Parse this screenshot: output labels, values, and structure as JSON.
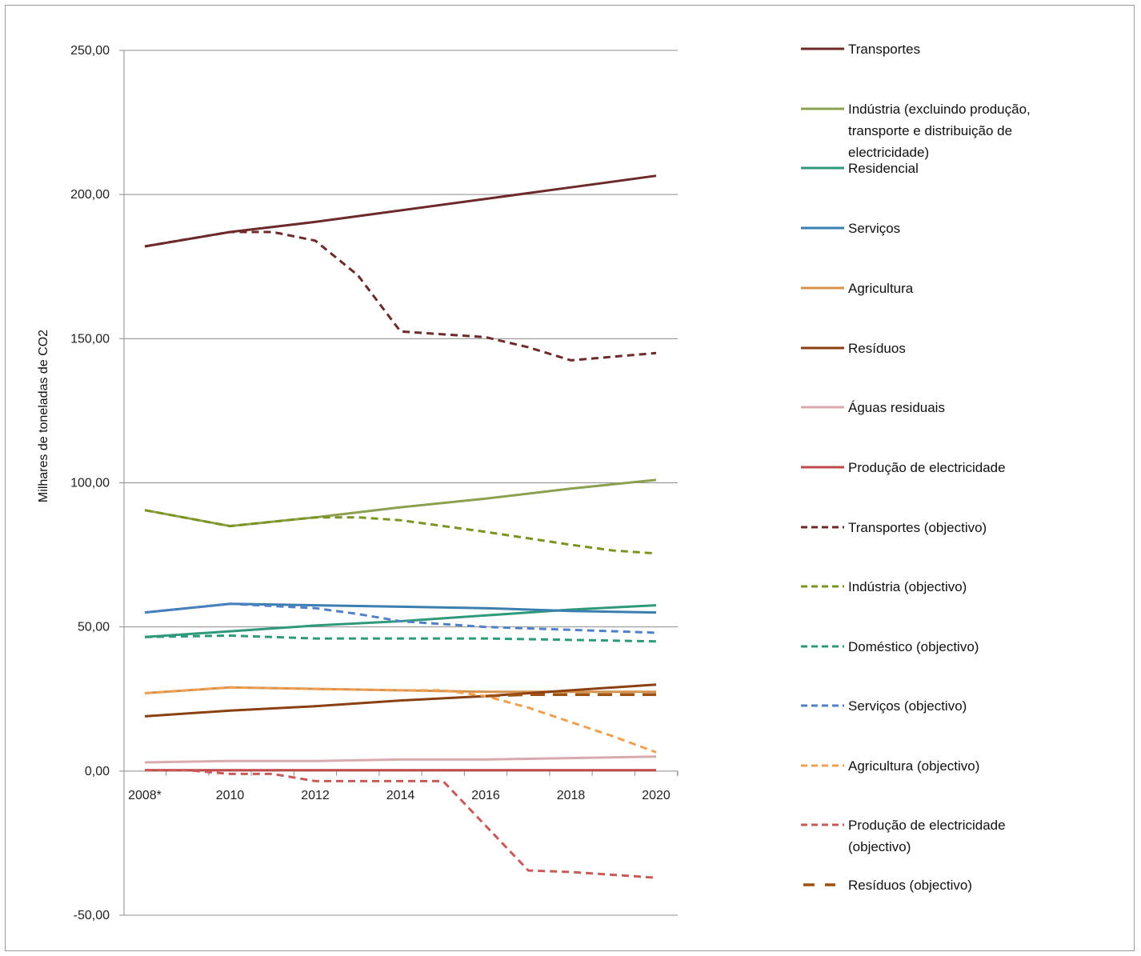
{
  "chart_data": {
    "type": "line",
    "title": "",
    "ylabel": "Milhares de toneladas de CO2",
    "xlabel": "",
    "ylim": [
      -50,
      250
    ],
    "yticks": [
      250,
      200,
      150,
      100,
      50,
      0,
      -50
    ],
    "ytick_labels": [
      "250,00",
      "200,00",
      "150,00",
      "100,00",
      "50,00",
      "0,00",
      "-50,00"
    ],
    "xlim": [
      2008,
      2020
    ],
    "xticks": [
      2008,
      2010,
      2012,
      2014,
      2016,
      2018,
      2020
    ],
    "xtick_labels": [
      "2008*",
      "2010",
      "2012",
      "2014",
      "2016",
      "2018",
      "2020"
    ],
    "grid": "horizontal",
    "legend_position": "right",
    "series": [
      {
        "name": "Transportes",
        "color": "#6e2a2a",
        "dash": "solid",
        "x": [
          2008,
          2010,
          2012,
          2014,
          2016,
          2018,
          2020
        ],
        "y": [
          182,
          187,
          190.5,
          194.5,
          198.5,
          202.5,
          206.5
        ]
      },
      {
        "name": "Indústria (excluindo produção, transporte e distribuição de electricidade)",
        "legend_lines": [
          "Indústria (excluindo  produção,",
          "transporte e distribuição  de",
          "electricidade)"
        ],
        "color": "#8ca050",
        "dash": "solid",
        "x": [
          2008,
          2010,
          2012,
          2014,
          2016,
          2018,
          2020
        ],
        "y": [
          90.5,
          85,
          88,
          91.5,
          94.5,
          98,
          101
        ]
      },
      {
        "name": "Residencial",
        "color": "#2f9a7a",
        "dash": "solid",
        "x": [
          2008,
          2010,
          2012,
          2014,
          2016,
          2018,
          2020
        ],
        "y": [
          46.5,
          48.5,
          50.5,
          52,
          54,
          56,
          57.5
        ]
      },
      {
        "name": "Serviços",
        "color": "#3a7fb0",
        "dash": "solid",
        "x": [
          2008,
          2010,
          2012,
          2014,
          2016,
          2018,
          2020
        ],
        "y": [
          55,
          58,
          57.5,
          57,
          56.5,
          55.5,
          55
        ]
      },
      {
        "name": "Agricultura",
        "color": "#d49450",
        "dash": "solid",
        "x": [
          2008,
          2010,
          2012,
          2014,
          2016,
          2018,
          2020
        ],
        "y": [
          27,
          29,
          28.5,
          28,
          27.5,
          27.5,
          27.5
        ]
      },
      {
        "name": "Resíduos",
        "color": "#8a4010",
        "dash": "solid",
        "x": [
          2008,
          2010,
          2012,
          2014,
          2016,
          2018,
          2020
        ],
        "y": [
          19,
          21,
          22.5,
          24.5,
          26,
          28,
          30
        ]
      },
      {
        "name": "Águas residuais",
        "color": "#d9aaae",
        "dash": "solid",
        "x": [
          2008,
          2010,
          2012,
          2014,
          2016,
          2018,
          2020
        ],
        "y": [
          3,
          3.5,
          3.5,
          4,
          4,
          4.5,
          5
        ]
      },
      {
        "name": "Produção de electricidade",
        "color": "#c04848",
        "dash": "solid",
        "x": [
          2008,
          2010,
          2012,
          2014,
          2016,
          2018,
          2020
        ],
        "y": [
          0.3,
          0.3,
          0.3,
          0.3,
          0.3,
          0.3,
          0.3
        ]
      },
      {
        "name": "Transportes (objectivo)",
        "color": "#6e2a2a",
        "dash": "dash",
        "x": [
          2008,
          2010,
          2011,
          2012,
          2013,
          2014,
          2016,
          2017,
          2018,
          2020
        ],
        "y": [
          182,
          187,
          187,
          184,
          172,
          152.5,
          150.5,
          147,
          142.5,
          145
        ]
      },
      {
        "name": "Indústria (objectivo)",
        "color": "#7a9420",
        "dash": "dash",
        "x": [
          2008,
          2010,
          2012,
          2013,
          2014,
          2016,
          2018,
          2019,
          2020
        ],
        "y": [
          90.5,
          85,
          88,
          88,
          87,
          83,
          78.5,
          76.5,
          75.5
        ]
      },
      {
        "name": "Doméstico (objectivo)",
        "color": "#2f9a7a",
        "dash": "dash",
        "x": [
          2008,
          2010,
          2012,
          2014,
          2016,
          2018,
          2020
        ],
        "y": [
          46.5,
          47,
          46,
          46,
          46,
          45.5,
          45
        ]
      },
      {
        "name": "Serviços (objectivo)",
        "color": "#5080c8",
        "dash": "dash",
        "x": [
          2008,
          2010,
          2012,
          2013,
          2014,
          2016,
          2018,
          2020
        ],
        "y": [
          55,
          58,
          56.5,
          54.5,
          52,
          50,
          49,
          48
        ]
      },
      {
        "name": "Agricultura (objectivo)",
        "color": "#f0a050",
        "dash": "dash",
        "x": [
          2008,
          2010,
          2012,
          2014,
          2015,
          2016,
          2017,
          2018,
          2019,
          2020
        ],
        "y": [
          27,
          29,
          28.5,
          28,
          28,
          26,
          22,
          17,
          12,
          6.5
        ]
      },
      {
        "name": "Produção de electricidade (objectivo)",
        "legend_lines": [
          "Produção de electricidade",
          "(objectivo)"
        ],
        "color": "#c85a5a",
        "dash": "dash",
        "x": [
          2008,
          2009,
          2010,
          2011,
          2012,
          2013,
          2014,
          2015,
          2017,
          2018,
          2020
        ],
        "y": [
          0.3,
          0.3,
          -1,
          -1,
          -3.5,
          -3.5,
          -3.5,
          -3.5,
          -34.5,
          -35,
          -37
        ]
      },
      {
        "name": "Resíduos (objectivo)",
        "color": "#a05010",
        "dash": "longdash",
        "x": [
          2016,
          2017,
          2018,
          2019,
          2020
        ],
        "y": [
          26,
          26.5,
          26.5,
          26.5,
          26.5
        ]
      }
    ]
  }
}
